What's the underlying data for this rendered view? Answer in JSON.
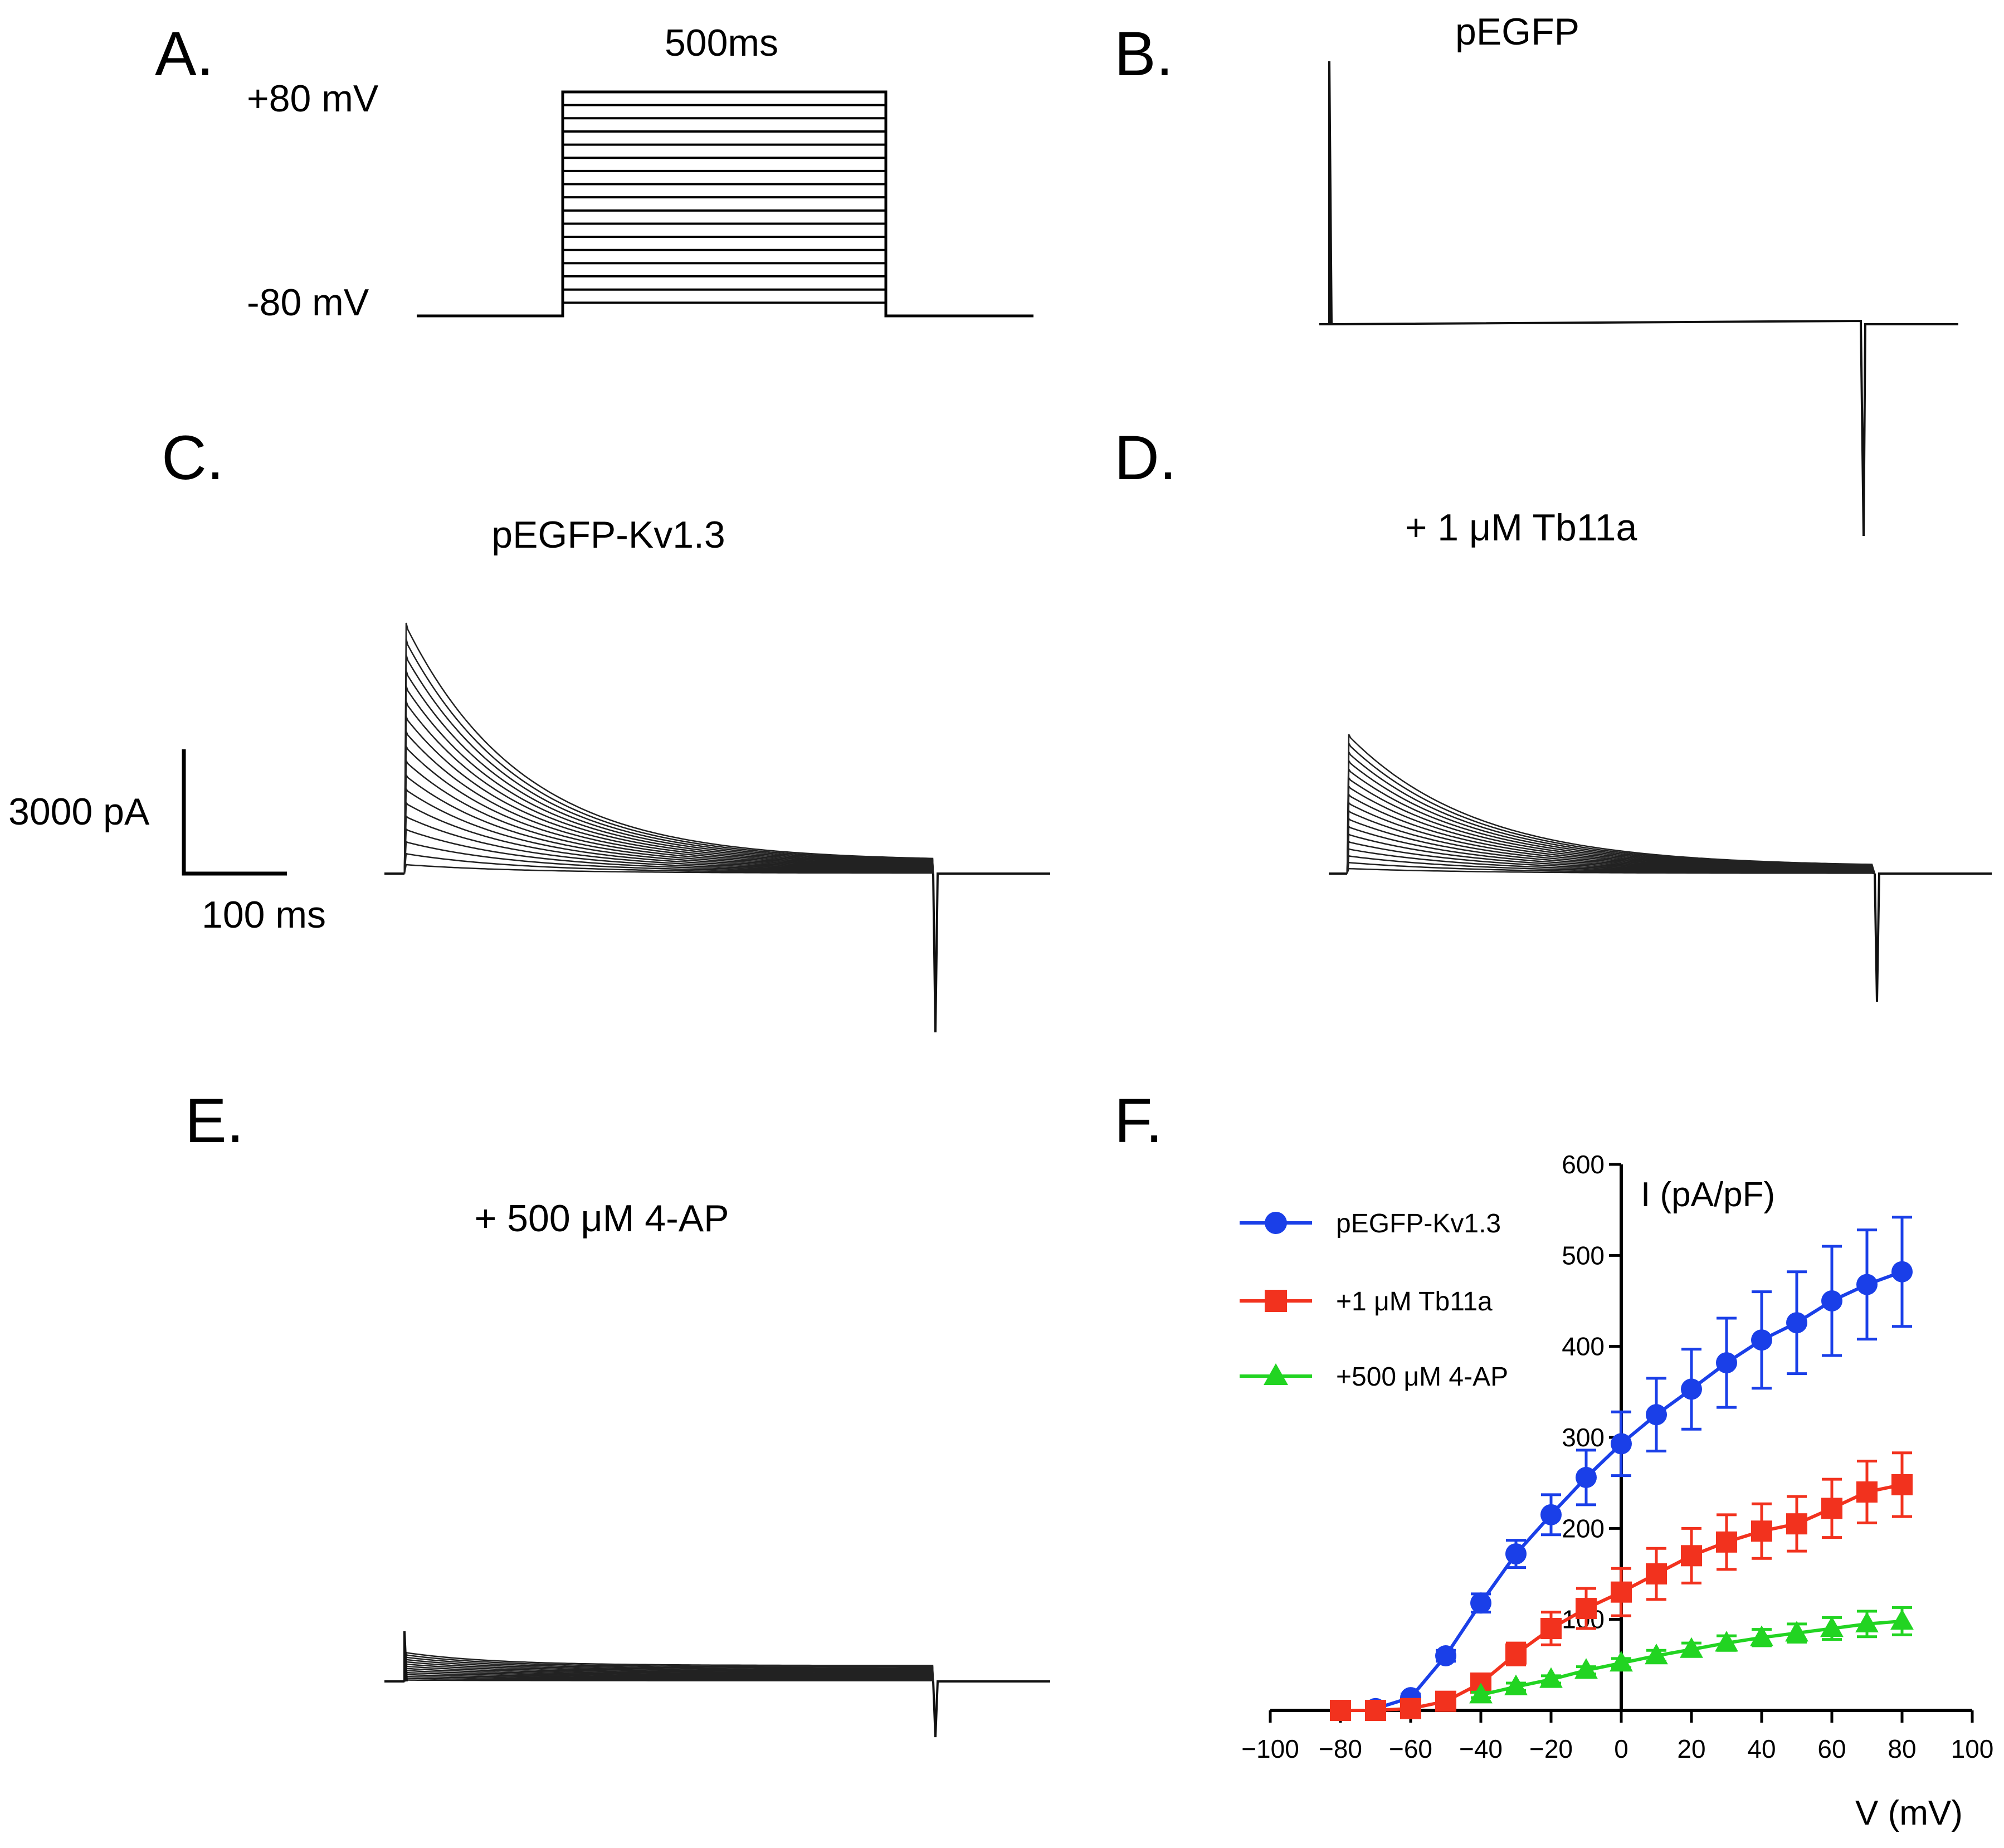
{
  "panels": {
    "a": {
      "label": "A.",
      "duration": "500ms",
      "v_top": "+80 mV",
      "v_bottom": "-80 mV"
    },
    "b": {
      "label": "B.",
      "title": "pEGFP"
    },
    "c": {
      "label": "C.",
      "title": "pEGFP-Kv1.3"
    },
    "d": {
      "label": "D.",
      "title": "+ 1 μM Tb11a"
    },
    "e": {
      "label": "E.",
      "title": "+ 500 μM 4-AP"
    },
    "f": {
      "label": "F."
    }
  },
  "scale_bar": {
    "current": "3000 pA",
    "time": "100 ms"
  },
  "chart_data": {
    "type": "line",
    "title": "",
    "xlabel": "V (mV)",
    "ylabel": "I (pA/pF)",
    "xlim": [
      -100,
      100
    ],
    "ylim": [
      0,
      600
    ],
    "xticks": [
      -100,
      -80,
      -60,
      -40,
      -20,
      0,
      20,
      40,
      60,
      80,
      100
    ],
    "yticks": [
      100,
      200,
      300,
      400,
      500,
      600
    ],
    "legend": "top-left",
    "colors": {
      "blue": "#1a3fe8",
      "red": "#f2321e",
      "green": "#22d422"
    },
    "series": [
      {
        "name": "pEGFP-Kv1.3",
        "marker": "circle",
        "color": "#1a3fe8",
        "x": [
          -70,
          -60,
          -50,
          -40,
          -30,
          -20,
          -10,
          0,
          10,
          20,
          30,
          40,
          50,
          60,
          70,
          80
        ],
        "y": [
          2,
          14,
          60,
          118,
          172,
          215,
          256,
          293,
          325,
          353,
          382,
          407,
          426,
          450,
          468,
          482
        ],
        "err": [
          0,
          4,
          6,
          10,
          15,
          22,
          30,
          35,
          40,
          44,
          49,
          53,
          56,
          60,
          60,
          60
        ]
      },
      {
        "name": "+1 μM Tb11a",
        "marker": "square",
        "color": "#f2321e",
        "x": [
          -80,
          -70,
          -60,
          -50,
          -40,
          -30,
          -20,
          -10,
          0,
          10,
          20,
          30,
          40,
          50,
          60,
          70,
          80
        ],
        "y": [
          0,
          0,
          2,
          10,
          30,
          62,
          90,
          112,
          130,
          150,
          170,
          185,
          197,
          205,
          222,
          240,
          248
        ],
        "err": [
          0,
          0,
          0,
          3,
          6,
          12,
          18,
          22,
          26,
          28,
          30,
          30,
          30,
          30,
          32,
          34,
          35
        ]
      },
      {
        "name": "+500 μM 4-AP",
        "marker": "triangle",
        "color": "#22d422",
        "x": [
          -40,
          -30,
          -20,
          -10,
          0,
          10,
          20,
          30,
          40,
          50,
          60,
          70,
          80
        ],
        "y": [
          17,
          26,
          34,
          44,
          52,
          60,
          67,
          74,
          80,
          85,
          90,
          95,
          98
        ],
        "err": [
          3,
          4,
          4,
          4,
          5,
          6,
          7,
          8,
          9,
          10,
          12,
          14,
          15
        ]
      }
    ]
  }
}
